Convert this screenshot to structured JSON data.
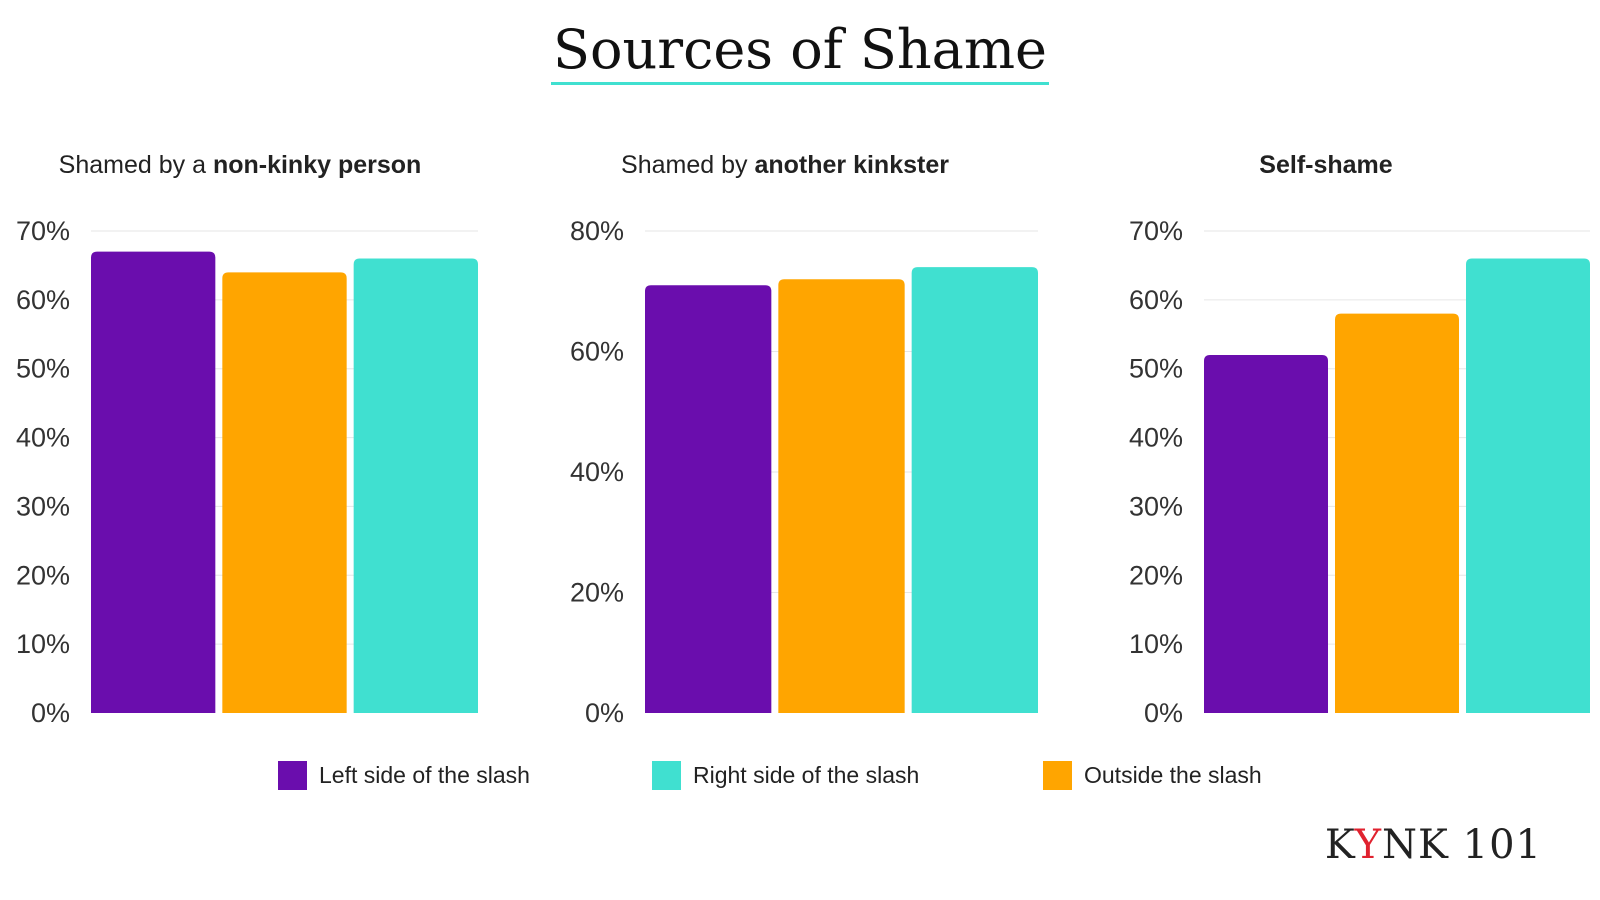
{
  "page": {
    "title": "Sources of Shame",
    "brand_prefix": "K",
    "brand_accent": "Y",
    "brand_suffix": "NK 101"
  },
  "colors": {
    "left": "#6a0dad",
    "outside": "#ffa500",
    "right": "#40e0d0",
    "grid": "#e6e6e6",
    "brand_accent": "#e0222f",
    "title_underline": "#40e0d0"
  },
  "legend": [
    {
      "label": "Left side of the slash",
      "color": "#6a0dad"
    },
    {
      "label": "Right side of the slash",
      "color": "#40e0d0"
    },
    {
      "label": "Outside the slash",
      "color": "#ffa500"
    }
  ],
  "chart_data": [
    {
      "type": "bar",
      "title_plain": "Shamed by a ",
      "title_bold": "non-kinky person",
      "categories": [
        "Left side of the slash",
        "Outside the slash",
        "Right side of the slash"
      ],
      "values": [
        67,
        64,
        66
      ],
      "colors": [
        "#6a0dad",
        "#ffa500",
        "#40e0d0"
      ],
      "ylim": [
        0,
        70
      ],
      "yticks": [
        0,
        10,
        20,
        30,
        40,
        50,
        60,
        70
      ],
      "ytick_labels": [
        "0%",
        "10%",
        "20%",
        "30%",
        "40%",
        "50%",
        "60%",
        "70%"
      ],
      "grid": true
    },
    {
      "type": "bar",
      "title_plain": "Shamed by ",
      "title_bold": "another kinkster",
      "categories": [
        "Left side of the slash",
        "Outside the slash",
        "Right side of the slash"
      ],
      "values": [
        71,
        72,
        74
      ],
      "colors": [
        "#6a0dad",
        "#ffa500",
        "#40e0d0"
      ],
      "ylim": [
        0,
        80
      ],
      "yticks": [
        0,
        20,
        40,
        60,
        80
      ],
      "ytick_labels": [
        "0%",
        "20%",
        "40%",
        "60%",
        "80%"
      ],
      "grid": true
    },
    {
      "type": "bar",
      "title_plain": "",
      "title_bold": "Self-shame",
      "categories": [
        "Left side of the slash",
        "Outside the slash",
        "Right side of the slash"
      ],
      "values": [
        52,
        58,
        66
      ],
      "colors": [
        "#6a0dad",
        "#ffa500",
        "#40e0d0"
      ],
      "ylim": [
        0,
        70
      ],
      "yticks": [
        0,
        10,
        20,
        30,
        40,
        50,
        60,
        70
      ],
      "ytick_labels": [
        "0%",
        "10%",
        "20%",
        "30%",
        "40%",
        "50%",
        "60%",
        "70%"
      ],
      "grid": true
    }
  ]
}
